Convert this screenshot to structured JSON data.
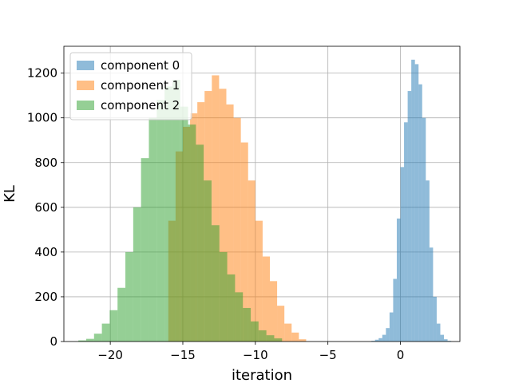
{
  "chart_data": {
    "type": "bar",
    "subtype": "histogram",
    "title": "",
    "xlabel": "iteration",
    "ylabel": "KL",
    "xlim": [
      -23.2,
      4.1
    ],
    "ylim": [
      0,
      1320
    ],
    "xticks": [
      -20,
      -15,
      -10,
      -5,
      0
    ],
    "xtick_labels": [
      "−20",
      "−15",
      "−10",
      "−5",
      "0"
    ],
    "yticks": [
      0,
      200,
      400,
      600,
      800,
      1000,
      1200
    ],
    "ytick_labels": [
      "0",
      "200",
      "400",
      "600",
      "800",
      "1000",
      "1200"
    ],
    "grid": true,
    "legend_position": "top-left",
    "bar_alpha": 0.5,
    "series": [
      {
        "name": "component 0",
        "color": "#1f77b4",
        "bin_start": -2.0,
        "bin_width": 0.25,
        "values": [
          3,
          8,
          15,
          30,
          60,
          130,
          280,
          550,
          780,
          980,
          1120,
          1260,
          1240,
          1150,
          1000,
          720,
          420,
          200,
          80,
          30,
          10,
          3
        ]
      },
      {
        "name": "component 1",
        "color": "#ff7f0e",
        "bin_start": -16.0,
        "bin_width": 0.5,
        "values": [
          540,
          850,
          960,
          1020,
          1070,
          1120,
          1190,
          1130,
          1060,
          1000,
          890,
          720,
          540,
          380,
          270,
          160,
          80,
          40,
          10
        ]
      },
      {
        "name": "component 2",
        "color": "#2ca02c",
        "bin_start": -22.2,
        "bin_width": 0.54,
        "values": [
          5,
          12,
          35,
          80,
          140,
          240,
          400,
          600,
          820,
          1000,
          1080,
          1140,
          1170,
          1050,
          970,
          880,
          720,
          520,
          400,
          300,
          220,
          150,
          90,
          50,
          28,
          14
        ]
      }
    ]
  }
}
